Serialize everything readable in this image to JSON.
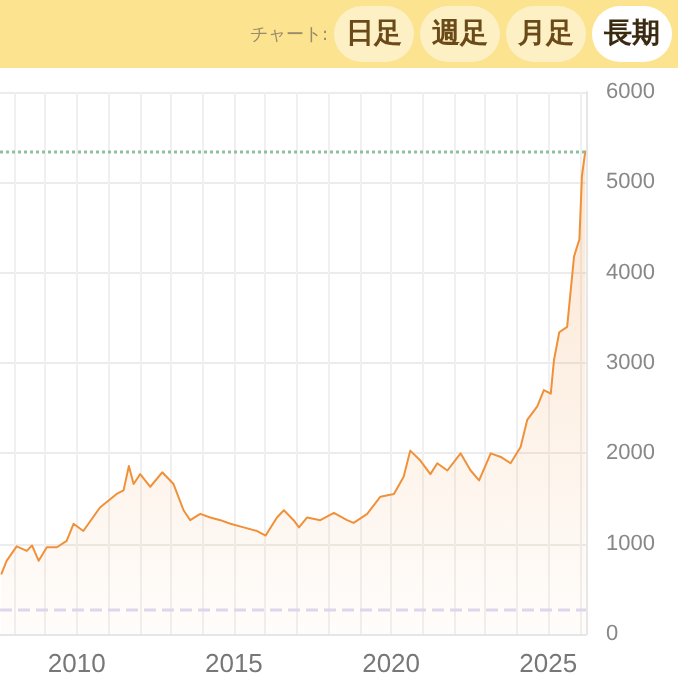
{
  "chart_data": {
    "type": "area",
    "annotations": [
      "チャート:",
      "日足",
      "週足",
      "月足",
      "長期"
    ],
    "x": [
      2007.6,
      2007.77,
      2008.09,
      2008.41,
      2008.58,
      2008.79,
      2009.05,
      2009.37,
      2009.68,
      2009.9,
      2010.21,
      2010.74,
      2011.27,
      2011.49,
      2011.66,
      2011.81,
      2012.02,
      2012.34,
      2012.72,
      2013.08,
      2013.4,
      2013.61,
      2013.93,
      2014.25,
      2014.57,
      2014.89,
      2015.31,
      2015.74,
      2016.01,
      2016.37,
      2016.59,
      2016.9,
      2017.07,
      2017.33,
      2017.75,
      2018.18,
      2018.6,
      2018.81,
      2019.24,
      2019.66,
      2020.09,
      2020.4,
      2020.61,
      2020.93,
      2021.25,
      2021.47,
      2021.79,
      2022.21,
      2022.53,
      2022.8,
      2023.17,
      2023.49,
      2023.8,
      2024.12,
      2024.33,
      2024.65,
      2024.86,
      2025.08,
      2025.18,
      2025.35,
      2025.6,
      2025.82,
      2025.99,
      2026.07,
      2026.18
    ],
    "series": [
      {
        "color": "#f0913a",
        "values": [
          660,
          810,
          970,
          920,
          980,
          810,
          960,
          960,
          1030,
          1220,
          1140,
          1400,
          1550,
          1590,
          1860,
          1660,
          1770,
          1630,
          1790,
          1660,
          1370,
          1260,
          1330,
          1290,
          1260,
          1220,
          1180,
          1140,
          1090,
          1290,
          1370,
          1260,
          1180,
          1290,
          1260,
          1340,
          1260,
          1230,
          1330,
          1520,
          1550,
          1740,
          2030,
          1920,
          1770,
          1890,
          1810,
          2000,
          1810,
          1700,
          2000,
          1960,
          1890,
          2070,
          2370,
          2520,
          2700,
          2660,
          3030,
          3340,
          3400,
          4180,
          4370,
          5070,
          5350
        ]
      }
    ],
    "xlim": [
      2007.56,
      2026.2
    ],
    "xticks": [
      {
        "value": 2008,
        "label": null
      },
      {
        "value": 2009,
        "label": null
      },
      2010,
      {
        "value": 2011,
        "label": null
      },
      {
        "value": 2012,
        "label": null
      },
      {
        "value": 2013,
        "label": null
      },
      {
        "value": 2014,
        "label": null
      },
      2015,
      {
        "value": 2016,
        "label": null
      },
      {
        "value": 2017,
        "label": null
      },
      {
        "value": 2018,
        "label": null
      },
      {
        "value": 2019,
        "label": null
      },
      2020,
      {
        "value": 2021,
        "label": null
      },
      {
        "value": 2022,
        "label": null
      },
      {
        "value": 2023,
        "label": null
      },
      {
        "value": 2024,
        "label": null
      },
      2025,
      {
        "value": 2026,
        "label": null
      }
    ],
    "ylim": [
      0,
      6000
    ],
    "yticks": [
      0,
      1000,
      2000,
      3000,
      4000,
      5000,
      6000
    ],
    "ref_lines": [
      {
        "axis": "y",
        "value": 5350,
        "color": "#8fbf9f",
        "line_style": "dotted"
      },
      {
        "axis": "y",
        "value": 270,
        "color": "#ddd6ec",
        "line_style": "dashed"
      }
    ],
    "grid": true
  }
}
